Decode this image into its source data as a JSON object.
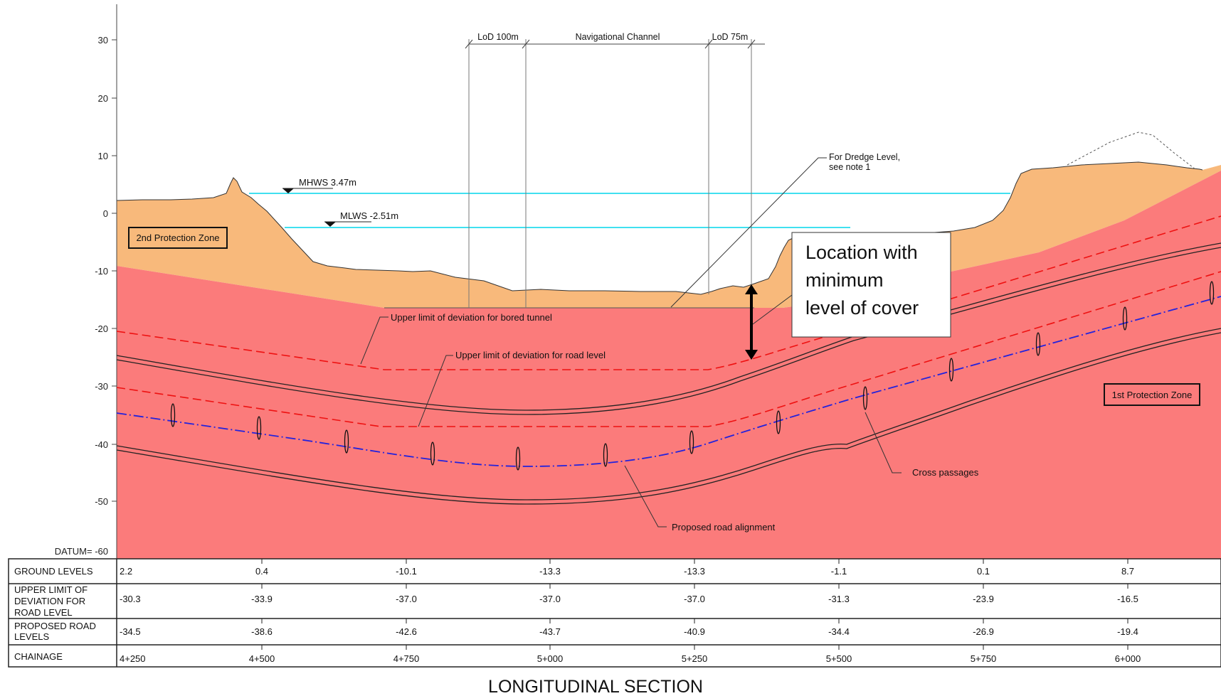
{
  "y_axis": {
    "ticks": [
      "30",
      "20",
      "10",
      "0",
      "-10",
      "-20",
      "-30",
      "-40",
      "-50"
    ],
    "datum": "DATUM= -60"
  },
  "water_levels": {
    "mhws": "MHWS 3.47m",
    "mlws": "MLWS -2.51m"
  },
  "dimensions": {
    "lod_100": "LoD 100m",
    "channel": "Navigational Channel",
    "lod_75": "LoD 75m"
  },
  "zones": {
    "second": "2nd Protection Zone",
    "first": "1st Protection Zone"
  },
  "labels": {
    "dredge": [
      "For Dredge Level,",
      "see note 1"
    ],
    "upper_tunnel": "Upper limit of deviation for bored tunnel",
    "upper_road": "Upper limit of deviation for road level",
    "cross_passages": "Cross passages",
    "road_alignment": "Proposed road alignment"
  },
  "callout": [
    "Location with",
    "minimum",
    "level of cover"
  ],
  "table": {
    "row_headers": [
      [
        "GROUND LEVELS"
      ],
      [
        "UPPER LIMIT OF",
        "DEVIATION FOR",
        "ROAD LEVEL"
      ],
      [
        "PROPOSED ROAD",
        "LEVELS"
      ],
      [
        "CHAINAGE"
      ]
    ],
    "ground_levels": [
      "2.2",
      "0.4",
      "-10.1",
      "-13.3",
      "-13.3",
      "-1.1",
      "0.1",
      "8.7"
    ],
    "upper_limit": [
      "-30.3",
      "-33.9",
      "-37.0",
      "-37.0",
      "-37.0",
      "-31.3",
      "-23.9",
      "-16.5"
    ],
    "road_levels": [
      "-34.5",
      "-38.6",
      "-42.6",
      "-43.7",
      "-40.9",
      "-34.4",
      "-26.9",
      "-19.4"
    ],
    "chainage": [
      "4+250",
      "4+500",
      "4+750",
      "5+000",
      "5+250",
      "5+500",
      "5+750",
      "6+000"
    ]
  },
  "title": "LONGITUDINAL SECTION",
  "colors": {
    "ground_fill": "#f8b97b",
    "rock_fill": "#fb7b7b",
    "water_line": "#40e0f0",
    "limit_line": "#ee1111",
    "alignment_line": "#2222dd"
  }
}
